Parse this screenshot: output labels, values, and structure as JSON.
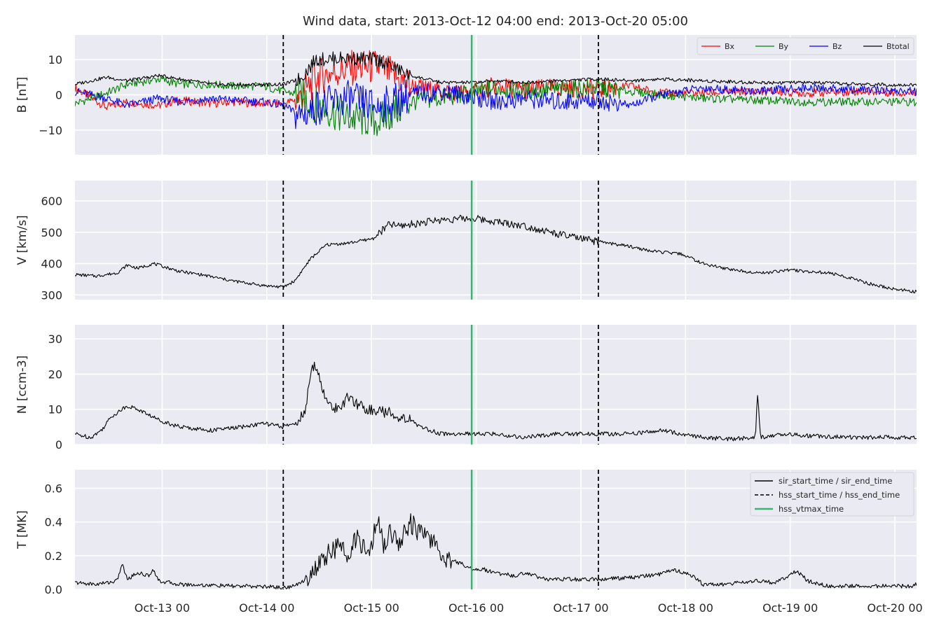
{
  "title": "Wind data, start: 2013-Oct-12 04:00  end: 2013-Oct-20 05:00",
  "colors": {
    "background": "#eaeaf2",
    "grid": "#ffffff",
    "Bx": "#ff0000",
    "By": "#008000",
    "Bz": "#0000ff",
    "Btotal": "#000000",
    "sir": "#000000",
    "hss": "#000000",
    "vtmax": "#3cb371"
  },
  "chart_data": [
    {
      "id": "B",
      "type": "line",
      "ylabel": "B [nT]",
      "ylim": [
        -17,
        17
      ],
      "yticks": [
        -10,
        0,
        10
      ],
      "yticklabels": [
        "−10",
        "0",
        "10"
      ],
      "legend_placement": "top-right",
      "series": [
        {
          "name": "Bx",
          "x": [
            0,
            0.3,
            0.5,
            0.8,
            1.0,
            1.3,
            1.5,
            1.8,
            1.99,
            2.15,
            2.3,
            2.6,
            2.9,
            3.2,
            3.5,
            3.8,
            4.0,
            4.3,
            4.6,
            5.0,
            5.3,
            5.6,
            6.0,
            6.5,
            7.0,
            7.5,
            8.0,
            8.04
          ],
          "y": [
            2.0,
            -3.5,
            -2.0,
            -3.0,
            -1.5,
            -2.5,
            -2.0,
            -2.5,
            -2.5,
            -1.0,
            5.0,
            7.5,
            8.0,
            2.5,
            1.0,
            0.5,
            2.5,
            1.5,
            2.0,
            1.5,
            2.5,
            0.5,
            0.5,
            1.0,
            0.5,
            1.0,
            0.5,
            1.0
          ]
        },
        {
          "name": "By",
          "x": [
            0,
            0.3,
            0.5,
            0.8,
            1.0,
            1.3,
            1.5,
            1.8,
            1.99,
            2.15,
            2.3,
            2.6,
            2.9,
            3.2,
            3.5,
            3.8,
            4.0,
            4.3,
            4.6,
            5.0,
            5.3,
            5.6,
            6.0,
            6.5,
            7.0,
            7.5,
            8.0,
            8.04
          ],
          "y": [
            -2.5,
            0.5,
            3.0,
            4.5,
            3.0,
            3.0,
            2.5,
            2.5,
            1.0,
            0.0,
            -3.0,
            -6.5,
            -7.5,
            -2.0,
            -1.0,
            0.5,
            2.0,
            1.0,
            1.5,
            2.0,
            1.0,
            0.0,
            -1.0,
            -1.5,
            -2.0,
            -2.0,
            -2.0,
            -2.5
          ]
        },
        {
          "name": "Bz",
          "x": [
            0,
            0.3,
            0.5,
            0.8,
            1.0,
            1.3,
            1.5,
            1.8,
            1.99,
            2.15,
            2.3,
            2.6,
            2.9,
            3.2,
            3.5,
            3.8,
            4.0,
            4.3,
            4.6,
            5.0,
            5.3,
            5.6,
            6.0,
            6.5,
            7.0,
            7.5,
            8.0,
            8.04
          ],
          "y": [
            1.0,
            -1.0,
            -3.0,
            -1.0,
            -2.0,
            -1.0,
            -1.5,
            -2.0,
            -3.0,
            -6.0,
            -3.5,
            -1.0,
            -3.5,
            0.0,
            1.0,
            -0.5,
            -2.0,
            -1.0,
            -2.0,
            -1.5,
            -3.0,
            0.0,
            2.0,
            1.0,
            2.0,
            1.5,
            1.0,
            1.0
          ]
        },
        {
          "name": "Btotal",
          "x": [
            0,
            0.3,
            0.5,
            0.8,
            1.0,
            1.3,
            1.5,
            1.8,
            1.99,
            2.15,
            2.3,
            2.6,
            2.9,
            3.2,
            3.5,
            3.8,
            4.0,
            4.3,
            4.6,
            5.0,
            5.3,
            5.6,
            6.0,
            6.5,
            7.0,
            7.5,
            8.0,
            8.04
          ],
          "y": [
            3.0,
            5.0,
            4.0,
            5.5,
            4.5,
            3.0,
            2.8,
            2.9,
            3.0,
            4.5,
            10.0,
            10.5,
            10.0,
            5.5,
            3.5,
            3.5,
            4.0,
            3.5,
            4.0,
            4.5,
            4.0,
            4.5,
            4.0,
            3.5,
            3.5,
            3.0,
            2.8,
            2.8
          ]
        }
      ]
    },
    {
      "id": "V",
      "type": "line",
      "ylabel": "V [km/s]",
      "ylim": [
        285,
        665
      ],
      "yticks": [
        300,
        400,
        500,
        600
      ],
      "yticklabels": [
        "300",
        "400",
        "500",
        "600"
      ],
      "series": [
        {
          "x": [
            0,
            0.2,
            0.4,
            0.5,
            0.6,
            0.75,
            0.8,
            0.9,
            1.0,
            1.2,
            1.5,
            1.8,
            1.99,
            2.1,
            2.25,
            2.4,
            2.6,
            2.85,
            3.0,
            3.1,
            3.3,
            3.5,
            3.8,
            4.0,
            4.3,
            4.6,
            4.9,
            5.1,
            5.3,
            5.5,
            5.8,
            6.0,
            6.2,
            6.4,
            6.6,
            6.8,
            7.0,
            7.2,
            7.4,
            7.6,
            7.8,
            8.04
          ],
          "y": [
            365,
            360,
            370,
            395,
            385,
            400,
            395,
            385,
            375,
            365,
            345,
            330,
            325,
            345,
            415,
            460,
            465,
            480,
            525,
            520,
            530,
            540,
            545,
            535,
            520,
            495,
            475,
            465,
            455,
            440,
            430,
            400,
            385,
            375,
            370,
            380,
            375,
            370,
            355,
            335,
            320,
            310
          ]
        }
      ]
    },
    {
      "id": "N",
      "type": "line",
      "ylabel": "N [ccm-3]",
      "ylim": [
        0,
        34
      ],
      "yticks": [
        0,
        10,
        20,
        30
      ],
      "yticklabels": [
        "0",
        "10",
        "20",
        "30"
      ],
      "series": [
        {
          "x": [
            0,
            0.15,
            0.25,
            0.35,
            0.5,
            0.6,
            0.8,
            1.0,
            1.3,
            1.6,
            1.8,
            1.99,
            2.1,
            2.2,
            2.25,
            2.3,
            2.4,
            2.5,
            2.6,
            2.8,
            3.0,
            3.2,
            3.3,
            3.5,
            4.0,
            4.3,
            4.6,
            5.0,
            5.3,
            5.6,
            6.0,
            6.25,
            6.5,
            6.52,
            6.55,
            6.8,
            7.0,
            7.5,
            8.0,
            8.04
          ],
          "y": [
            3,
            2,
            4,
            8,
            11,
            10,
            7,
            5,
            4,
            5,
            6,
            5,
            6,
            9,
            20,
            23,
            12,
            10,
            13,
            10,
            9,
            7,
            5,
            3,
            3,
            2,
            3,
            3,
            3,
            4,
            2,
            1.5,
            2,
            15,
            2,
            3,
            2.5,
            2,
            2,
            2
          ]
        }
      ]
    },
    {
      "id": "T",
      "type": "line",
      "ylabel": "T [MK]",
      "ylim": [
        0,
        0.71
      ],
      "yticks": [
        0.0,
        0.2,
        0.4,
        0.6
      ],
      "yticklabels": [
        "0.0",
        "0.2",
        "0.4",
        "0.6"
      ],
      "legend_placement": "top-right",
      "series": [
        {
          "x": [
            0,
            0.2,
            0.4,
            0.45,
            0.5,
            0.6,
            0.7,
            0.75,
            0.8,
            1.0,
            1.5,
            1.9,
            1.99,
            2.1,
            2.2,
            2.3,
            2.4,
            2.5,
            2.6,
            2.7,
            2.8,
            2.9,
            2.95,
            3.0,
            3.1,
            3.2,
            3.3,
            3.4,
            3.5,
            3.7,
            3.8,
            3.9,
            4.0,
            4.2,
            4.3,
            4.5,
            5.0,
            5.3,
            5.6,
            5.7,
            5.8,
            5.9,
            6.0,
            6.2,
            6.5,
            6.7,
            6.9,
            7.0,
            7.2,
            7.5,
            8.0,
            8.04
          ],
          "y": [
            0.04,
            0.03,
            0.05,
            0.15,
            0.06,
            0.1,
            0.08,
            0.12,
            0.05,
            0.03,
            0.02,
            0.015,
            0.01,
            0.02,
            0.06,
            0.12,
            0.2,
            0.25,
            0.22,
            0.3,
            0.2,
            0.42,
            0.25,
            0.35,
            0.28,
            0.4,
            0.33,
            0.3,
            0.2,
            0.15,
            0.12,
            0.12,
            0.1,
            0.08,
            0.1,
            0.06,
            0.06,
            0.07,
            0.09,
            0.12,
            0.1,
            0.08,
            0.03,
            0.03,
            0.05,
            0.04,
            0.11,
            0.05,
            0.02,
            0.02,
            0.02,
            0.03
          ]
        }
      ]
    }
  ],
  "x_axis": {
    "type": "date",
    "start": "2013-Oct-12 04:00",
    "end": "2013-Oct-20 05:00",
    "ticks": [
      0.833,
      1.833,
      2.833,
      3.833,
      4.833,
      5.833,
      6.833,
      7.833
    ],
    "ticklabels": [
      "Oct-13 00",
      "Oct-14 00",
      "Oct-15 00",
      "Oct-16 00",
      "Oct-17 00",
      "Oct-18 00",
      "Oct-19 00",
      "Oct-20 00"
    ]
  },
  "markers": {
    "sir_lines": [],
    "hss_lines": [
      1.99,
      5.0
    ],
    "vtmax_line": 3.79
  },
  "legend_B": [
    "Bx",
    "By",
    "Bz",
    "Btotal"
  ],
  "legend_T": [
    {
      "label": "sir_start_time / sir_end_time",
      "style": "solid"
    },
    {
      "label": "hss_start_time / hss_end_time",
      "style": "dashed"
    },
    {
      "label": "hss_vtmax_time",
      "style": "green"
    }
  ]
}
